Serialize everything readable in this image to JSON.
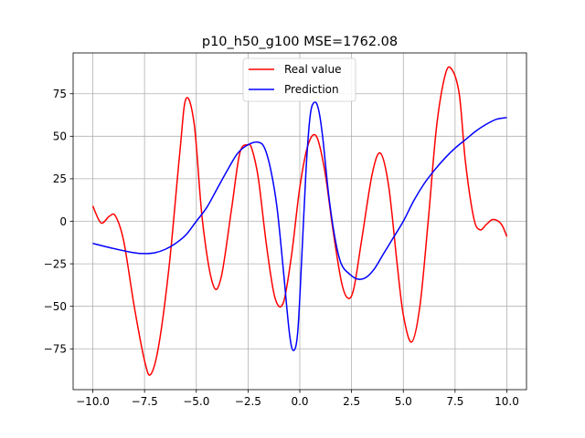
{
  "chart_data": {
    "type": "line",
    "title": "p10_h50_g100 MSE=1762.08",
    "xlabel": "",
    "ylabel": "",
    "xlim": [
      -10.95,
      10.95
    ],
    "ylim": [
      -99,
      99
    ],
    "grid": true,
    "legend_position": "top-center",
    "x_ticks": [
      -10,
      -7.5,
      -5,
      -2.5,
      0,
      2.5,
      5,
      7.5,
      10
    ],
    "x_tick_labels": [
      "−10.0",
      "−7.5",
      "−5.0",
      "−2.5",
      "0.0",
      "2.5",
      "5.0",
      "7.5",
      "10.0"
    ],
    "y_ticks": [
      -75,
      -50,
      -25,
      0,
      25,
      50,
      75
    ],
    "y_tick_labels": [
      "−75",
      "−50",
      "−25",
      "0",
      "25",
      "50",
      "75"
    ],
    "series": [
      {
        "name": "Real value",
        "color": "#ff0000",
        "x": [
          -10,
          -9.6,
          -9.2,
          -8.9,
          -8.5,
          -8.0,
          -7.5,
          -7.2,
          -6.8,
          -6.3,
          -5.8,
          -5.5,
          -5.1,
          -4.7,
          -4.2,
          -3.8,
          -3.3,
          -2.9,
          -2.5,
          -2.3,
          -2.0,
          -1.6,
          -1.2,
          -0.8,
          -0.4,
          0.0,
          0.4,
          0.8,
          1.2,
          1.6,
          2.0,
          2.3,
          2.6,
          3.0,
          3.5,
          3.9,
          4.3,
          4.7,
          5.0,
          5.4,
          5.8,
          6.2,
          6.6,
          7.0,
          7.3,
          7.7,
          8.0,
          8.4,
          8.7,
          9.0,
          9.3,
          9.6,
          9.8,
          10.0
        ],
        "values": [
          9,
          -1,
          3,
          3,
          -12,
          -50,
          -82,
          -90,
          -72,
          -25,
          40,
          72,
          57,
          0,
          -37,
          -33,
          7,
          40,
          45,
          42,
          25,
          -15,
          -45,
          -48,
          -20,
          20,
          45,
          50,
          30,
          -5,
          -35,
          -45,
          -40,
          -10,
          28,
          40,
          20,
          -25,
          -55,
          -71,
          -50,
          0,
          55,
          85,
          90,
          75,
          35,
          2,
          -5,
          -2,
          1,
          0,
          -3,
          -9
        ]
      },
      {
        "name": "Prediction",
        "color": "#0000ff",
        "x": [
          -10,
          -9.0,
          -8.0,
          -7.5,
          -7.0,
          -6.5,
          -6.0,
          -5.5,
          -5.0,
          -4.5,
          -4.0,
          -3.5,
          -3.0,
          -2.5,
          -2.0,
          -1.7,
          -1.4,
          -1.1,
          -0.8,
          -0.5,
          -0.3,
          -0.1,
          0.1,
          0.3,
          0.5,
          0.7,
          0.9,
          1.1,
          1.4,
          1.7,
          2.0,
          2.4,
          2.8,
          3.2,
          3.6,
          4.0,
          4.5,
          5.0,
          5.5,
          6.0,
          6.5,
          7.0,
          7.5,
          8.0,
          8.5,
          9.0,
          9.5,
          10.0
        ],
        "values": [
          -13,
          -16,
          -18.5,
          -19,
          -18.5,
          -16.5,
          -13,
          -8,
          0,
          8,
          19,
          30,
          40,
          45,
          46.5,
          43,
          30,
          8,
          -28,
          -66,
          -76,
          -65,
          -20,
          30,
          62,
          70,
          66,
          50,
          15,
          -10,
          -25,
          -31,
          -34,
          -33,
          -28,
          -20,
          -10,
          0,
          12,
          22,
          30,
          37,
          43,
          48,
          53,
          57,
          60,
          61
        ]
      }
    ]
  }
}
